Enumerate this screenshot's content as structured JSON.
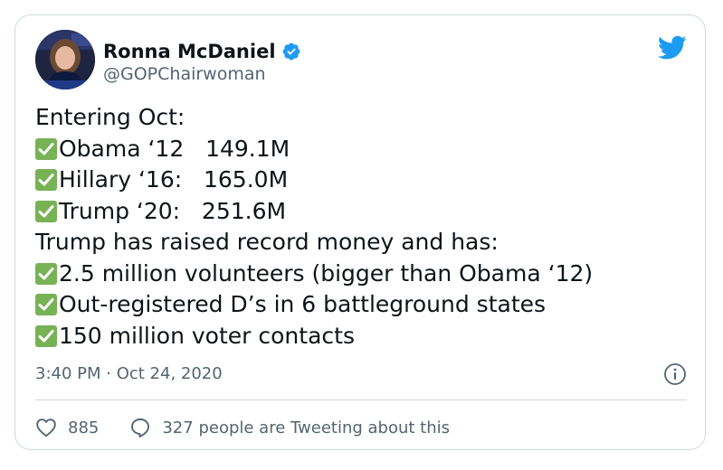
{
  "author": {
    "name": "Ronna McDaniel",
    "handle": "@GOPChairwoman",
    "verified": true,
    "avatar_icon": "avatar-photo"
  },
  "tweet": {
    "lines": [
      {
        "check": false,
        "text": "Entering Oct:"
      },
      {
        "check": true,
        "text": "Obama ‘12   149.1M"
      },
      {
        "check": true,
        "text": "Hillary ‘16:   165.0M"
      },
      {
        "check": true,
        "text": "Trump ‘20:   251.6M"
      },
      {
        "check": false,
        "text": "Trump has raised record money and has:"
      },
      {
        "check": true,
        "text": "2.5 million volunteers (bigger than Obama ‘12)"
      },
      {
        "check": true,
        "text": "Out-registered D’s in 6 battleground states"
      },
      {
        "check": true,
        "text": "150 million voter contacts"
      }
    ],
    "timestamp": "3:40 PM · Oct 24, 2020"
  },
  "engagement": {
    "likes": "885",
    "conversation": "327 people are Tweeting about this"
  },
  "icons": {
    "brand": "twitter-bird-icon",
    "info": "info-icon",
    "like": "heart-icon",
    "reply": "speech-bubble-icon",
    "check": "check-mark-icon"
  },
  "colors": {
    "brand": "#1d9bf0",
    "verified": "#1d9bf0",
    "check_box": "#77b255",
    "text": "#0f1419",
    "muted": "#536471",
    "border": "#cfd9de"
  }
}
